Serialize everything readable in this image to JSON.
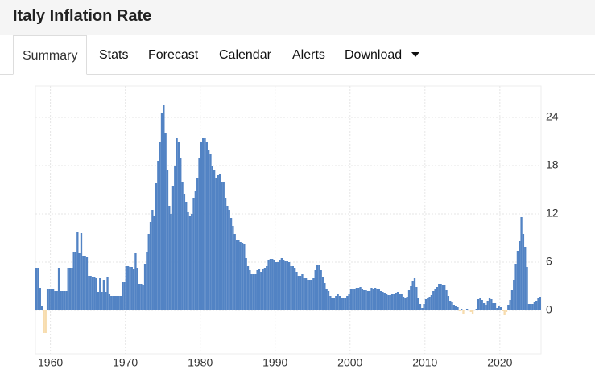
{
  "header": {
    "title": "Italy Inflation Rate"
  },
  "tabs": [
    "Summary",
    "Stats",
    "Forecast",
    "Calendar",
    "Alerts",
    "Download"
  ],
  "chart_data": {
    "type": "bar",
    "color": "#5283c4",
    "negative_color": "#f7dcae",
    "xlim": [
      1958,
      2025.5
    ],
    "xticks": [
      1960,
      1970,
      1980,
      1990,
      2000,
      2010,
      2020
    ],
    "ylim": [
      -5.4,
      27.9
    ],
    "yticks": [
      0,
      6,
      12,
      18,
      24
    ],
    "grid": true,
    "x": [
      1958,
      1958.25,
      1958.5,
      1958.75,
      1959,
      1959.25,
      1959.5,
      1959.75,
      1960,
      1960.25,
      1960.5,
      1960.75,
      1961,
      1961.25,
      1961.5,
      1961.75,
      1962,
      1962.25,
      1962.5,
      1962.75,
      1963,
      1963.25,
      1963.5,
      1963.75,
      1964,
      1964.25,
      1964.5,
      1964.75,
      1965,
      1965.25,
      1965.5,
      1965.75,
      1966,
      1966.25,
      1966.5,
      1966.75,
      1967,
      1967.25,
      1967.5,
      1967.75,
      1968,
      1968.25,
      1968.5,
      1968.75,
      1969,
      1969.25,
      1969.5,
      1969.75,
      1970,
      1970.25,
      1970.5,
      1970.75,
      1971,
      1971.25,
      1971.5,
      1971.75,
      1972,
      1972.25,
      1972.5,
      1972.75,
      1973,
      1973.25,
      1973.5,
      1973.75,
      1974,
      1974.25,
      1974.5,
      1974.75,
      1975,
      1975.25,
      1975.5,
      1975.75,
      1976,
      1976.25,
      1976.5,
      1976.75,
      1977,
      1977.25,
      1977.5,
      1977.75,
      1978,
      1978.25,
      1978.5,
      1978.75,
      1979,
      1979.25,
      1979.5,
      1979.75,
      1980,
      1980.25,
      1980.5,
      1980.75,
      1981,
      1981.25,
      1981.5,
      1981.75,
      1982,
      1982.25,
      1982.5,
      1982.75,
      1983,
      1983.25,
      1983.5,
      1983.75,
      1984,
      1984.25,
      1984.5,
      1984.75,
      1985,
      1985.25,
      1985.5,
      1985.75,
      1986,
      1986.25,
      1986.5,
      1986.75,
      1987,
      1987.25,
      1987.5,
      1987.75,
      1988,
      1988.25,
      1988.5,
      1988.75,
      1989,
      1989.25,
      1989.5,
      1989.75,
      1990,
      1990.25,
      1990.5,
      1990.75,
      1991,
      1991.25,
      1991.5,
      1991.75,
      1992,
      1992.25,
      1992.5,
      1992.75,
      1993,
      1993.25,
      1993.5,
      1993.75,
      1994,
      1994.25,
      1994.5,
      1994.75,
      1995,
      1995.25,
      1995.5,
      1995.75,
      1996,
      1996.25,
      1996.5,
      1996.75,
      1997,
      1997.25,
      1997.5,
      1997.75,
      1998,
      1998.25,
      1998.5,
      1998.75,
      1999,
      1999.25,
      1999.5,
      1999.75,
      2000,
      2000.25,
      2000.5,
      2000.75,
      2001,
      2001.25,
      2001.5,
      2001.75,
      2002,
      2002.25,
      2002.5,
      2002.75,
      2003,
      2003.25,
      2003.5,
      2003.75,
      2004,
      2004.25,
      2004.5,
      2004.75,
      2005,
      2005.25,
      2005.5,
      2005.75,
      2006,
      2006.25,
      2006.5,
      2006.75,
      2007,
      2007.25,
      2007.5,
      2007.75,
      2008,
      2008.25,
      2008.5,
      2008.75,
      2009,
      2009.25,
      2009.5,
      2009.75,
      2010,
      2010.25,
      2010.5,
      2010.75,
      2011,
      2011.25,
      2011.5,
      2011.75,
      2012,
      2012.25,
      2012.5,
      2012.75,
      2013,
      2013.25,
      2013.5,
      2013.75,
      2014,
      2014.25,
      2014.5,
      2014.75,
      2015,
      2015.25,
      2015.5,
      2015.75,
      2016,
      2016.25,
      2016.5,
      2016.75,
      2017,
      2017.25,
      2017.5,
      2017.75,
      2018,
      2018.25,
      2018.5,
      2018.75,
      2019,
      2019.25,
      2019.5,
      2019.75,
      2020,
      2020.25,
      2020.5,
      2020.75,
      2021,
      2021.25,
      2021.5,
      2021.75,
      2022,
      2022.25,
      2022.5,
      2022.75,
      2023,
      2023.25,
      2023.5,
      2023.75,
      2024,
      2024.25,
      2024.5,
      2024.75,
      2025,
      2025.25
    ],
    "values": [
      5.3,
      5.3,
      2.8,
      0.5,
      -2.8,
      -2.8,
      2.6,
      2.6,
      2.6,
      2.6,
      2.4,
      2.4,
      5.3,
      2.4,
      2.4,
      2.4,
      2.4,
      5.3,
      5.3,
      5.3,
      7.3,
      7.3,
      9.8,
      7.2,
      9.6,
      6.8,
      6.8,
      6.6,
      4.3,
      4.3,
      4.1,
      4.1,
      4.0,
      2.3,
      4.0,
      2.3,
      3.8,
      2.3,
      4.2,
      2.0,
      1.8,
      1.8,
      1.8,
      1.8,
      1.8,
      1.8,
      3.5,
      3.5,
      5.5,
      5.5,
      5.4,
      5.4,
      5.2,
      7.2,
      5.3,
      3.3,
      3.3,
      3.2,
      5.8,
      7.3,
      9.5,
      11,
      12.5,
      11.8,
      15.8,
      18.6,
      21.0,
      24.5,
      25.5,
      22,
      17.5,
      13,
      12,
      15.5,
      18,
      21.5,
      21,
      19,
      16,
      14.5,
      13.5,
      12.2,
      11.8,
      12,
      14,
      14.8,
      16.5,
      19,
      21,
      21.5,
      21.5,
      21,
      20,
      19.5,
      18,
      17.5,
      16.5,
      16.8,
      17,
      16,
      16,
      14,
      13,
      12.5,
      11.5,
      10.5,
      9.5,
      8.8,
      8.8,
      8.5,
      8.4,
      8.3,
      6.5,
      5.5,
      5,
      4.5,
      4.5,
      4.5,
      5.0,
      5.1,
      4.8,
      5.1,
      5.3,
      5.5,
      6.3,
      6.4,
      6.4,
      6.3,
      6,
      6,
      6.3,
      6.5,
      6.3,
      6.2,
      6.1,
      6.0,
      5.5,
      5.5,
      5.3,
      4.8,
      4.3,
      4.3,
      4.5,
      4.0,
      4.0,
      3.8,
      3.8,
      3.8,
      4.0,
      5.0,
      5.6,
      5.6,
      5.0,
      4.2,
      3.4,
      2.6,
      2.4,
      1.8,
      1.5,
      1.6,
      1.8,
      2.0,
      1.8,
      1.5,
      1.5,
      1.6,
      1.8,
      2.0,
      2.6,
      2.6,
      2.7,
      2.8,
      2.8,
      2.9,
      2.7,
      2.5,
      2.5,
      2.4,
      2.4,
      2.8,
      2.7,
      2.8,
      2.7,
      2.6,
      2.4,
      2.3,
      2.2,
      2.0,
      1.9,
      1.9,
      2.0,
      2.0,
      2.2,
      2.3,
      2.1,
      2.0,
      1.7,
      1.6,
      1.7,
      2.5,
      3.0,
      3.7,
      4.0,
      2.9,
      1.5,
      0.8,
      0.3,
      0.8,
      1.4,
      1.6,
      1.7,
      1.9,
      2.4,
      2.7,
      2.9,
      3.3,
      3.3,
      3.2,
      3.1,
      2.5,
      1.8,
      1.2,
      1.0,
      0.7,
      0.5,
      0.4,
      -0.1,
      0.2,
      -0.5,
      0.1,
      0.2,
      0.1,
      -0.2,
      -0.4,
      0.1,
      0.2,
      1.4,
      1.6,
      1.3,
      0.9,
      0.7,
      1.2,
      1.6,
      1.4,
      0.9,
      0.9,
      0.3,
      0.6,
      0.4,
      -0.1,
      -0.6,
      -0.2,
      0.7,
      1.3,
      2.5,
      3.8,
      5.8,
      7.4,
      8.6,
      11.6,
      9.5,
      7.9,
      5.4,
      0.8,
      0.8,
      0.8,
      1.1,
      1.2,
      1.6,
      1.7
    ]
  }
}
